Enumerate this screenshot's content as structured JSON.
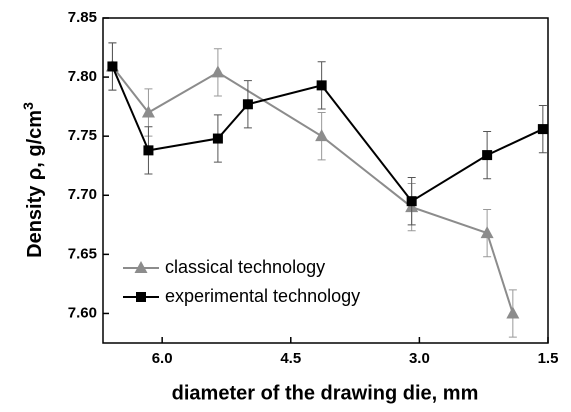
{
  "chart_data": {
    "type": "line",
    "xlabel": "diameter of the drawing die, mm",
    "ylabel": "Density ρ, g/cm",
    "ylabel_superscript": "3",
    "xlim": [
      6.69,
      1.5
    ],
    "xticks": [
      {
        "value": 6.0,
        "label": "6.0"
      },
      4.5,
      {
        "value": 3.0,
        "label": "3.0"
      },
      1.5
    ],
    "ylim": [
      7.575,
      7.85
    ],
    "yticks": [
      {
        "value": 7.6,
        "label": "7.60"
      },
      7.65,
      {
        "value": 7.7,
        "label": "7.70"
      },
      7.75,
      {
        "value": 7.8,
        "label": "7.80"
      },
      7.85
    ],
    "legend": "lower-left",
    "series": [
      {
        "name": "classical technology",
        "color": "#8c8c8c",
        "marker": "triangle",
        "x": [
          6.58,
          6.16,
          5.35,
          4.14,
          3.09,
          2.21,
          1.91
        ],
        "values": [
          7.809,
          7.77,
          7.804,
          7.75,
          7.69,
          7.668,
          7.6
        ],
        "errors": [
          0.02,
          0.02,
          0.02,
          0.02,
          0.02,
          0.02,
          0.02
        ]
      },
      {
        "name": "experimental technology",
        "color": "#000000",
        "marker": "square",
        "x": [
          6.58,
          6.16,
          5.35,
          5.0,
          4.14,
          3.09,
          2.21,
          1.56
        ],
        "values": [
          7.809,
          7.738,
          7.748,
          7.777,
          7.793,
          7.695,
          7.734,
          7.756
        ],
        "errors": [
          0.02,
          0.02,
          0.02,
          0.02,
          0.02,
          0.02,
          0.02,
          0.02
        ]
      }
    ]
  }
}
